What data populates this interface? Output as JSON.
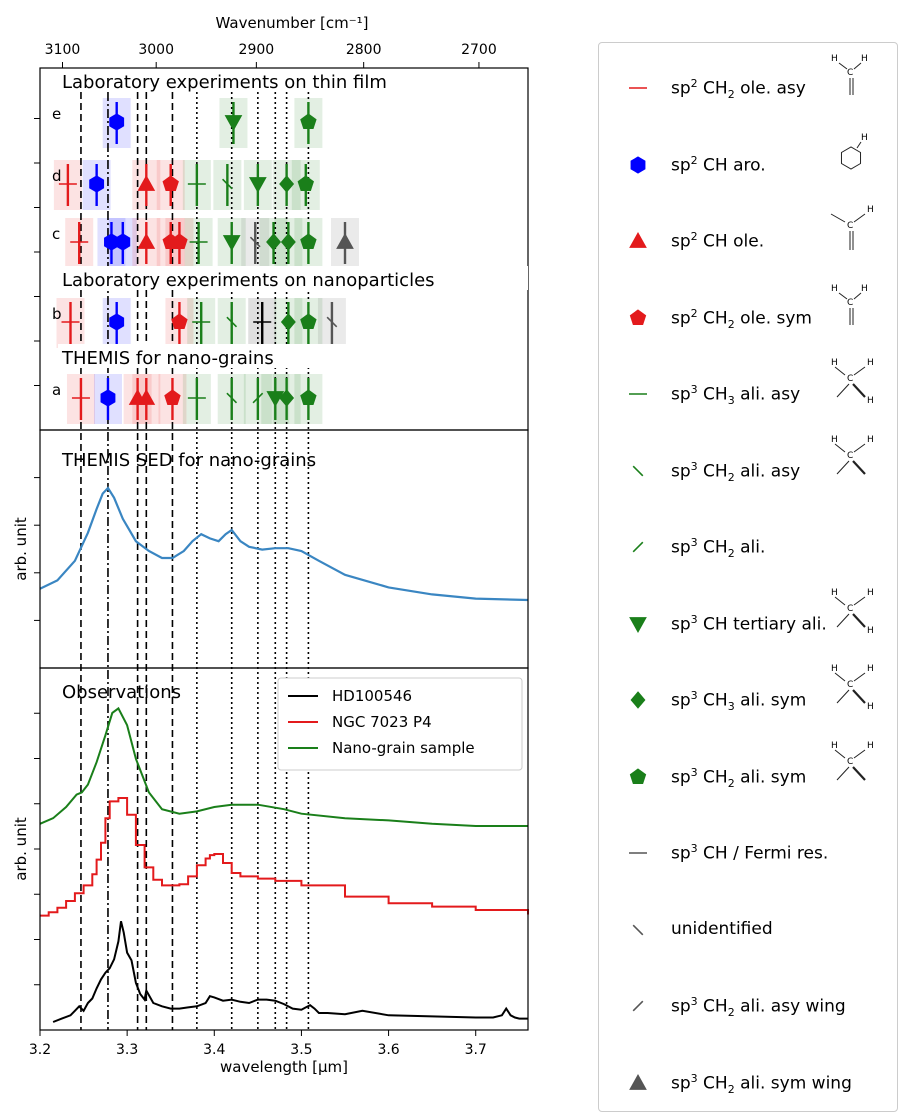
{
  "colors": {
    "sp2": "#e31a1c",
    "aro": "#0000ff",
    "sp3": "#1a7f1a",
    "gray": "#555555",
    "sed": "#3a86c2",
    "black": "#000000"
  },
  "chart_data": {
    "type": "line",
    "xlabel": "wavelength [μm]",
    "top_axis_label": "Wavenumber [cm⁻¹]",
    "xlim": [
      3.2,
      3.76
    ],
    "x_ticks": [
      "3.2",
      "3.3",
      "3.4",
      "3.5",
      "3.6",
      "3.7"
    ],
    "top_ticks": [
      "3100",
      "3000",
      "2900",
      "2800",
      "2700"
    ],
    "vlines": [
      {
        "x": 3.247,
        "style": "dashed"
      },
      {
        "x": 3.278,
        "style": "dashdot"
      },
      {
        "x": 3.312,
        "style": "dashed"
      },
      {
        "x": 3.322,
        "style": "dashed"
      },
      {
        "x": 3.352,
        "style": "dashed"
      },
      {
        "x": 3.38,
        "style": "dotted"
      },
      {
        "x": 3.42,
        "style": "dotted"
      },
      {
        "x": 3.45,
        "style": "dotted"
      },
      {
        "x": 3.47,
        "style": "dotted"
      },
      {
        "x": 3.483,
        "style": "dotted"
      },
      {
        "x": 3.508,
        "style": "dotted"
      }
    ],
    "panel_top": {
      "section_titles": [
        "Laboratory experiments on thin film",
        "Laboratory experiments on nanoparticles",
        "THEMIS for nano-grains"
      ],
      "row_labels": [
        "e",
        "d",
        "c",
        "b",
        "a"
      ],
      "rows": {
        "e": [
          {
            "x": 3.288,
            "marker": "hexagon",
            "color": "aro"
          },
          {
            "x": 3.422,
            "marker": "tri_down",
            "color": "sp3"
          },
          {
            "x": 3.508,
            "marker": "pentagon",
            "color": "sp3"
          }
        ],
        "d": [
          {
            "x": 3.232,
            "marker": "hline",
            "color": "sp2"
          },
          {
            "x": 3.265,
            "marker": "hexagon",
            "color": "aro"
          },
          {
            "x": 3.322,
            "marker": "tri_up",
            "color": "sp2"
          },
          {
            "x": 3.35,
            "marker": "pentagon",
            "color": "sp2"
          },
          {
            "x": 3.38,
            "marker": "hline",
            "color": "sp3"
          },
          {
            "x": 3.415,
            "marker": "backslash",
            "color": "sp3"
          },
          {
            "x": 3.45,
            "marker": "tri_down",
            "color": "sp3"
          },
          {
            "x": 3.483,
            "marker": "diamond",
            "color": "sp3"
          },
          {
            "x": 3.505,
            "marker": "pentagon",
            "color": "sp3"
          }
        ],
        "c": [
          {
            "x": 3.245,
            "marker": "hline",
            "color": "sp2"
          },
          {
            "x": 3.282,
            "marker": "hexagon",
            "color": "aro"
          },
          {
            "x": 3.295,
            "marker": "hexagon",
            "color": "aro"
          },
          {
            "x": 3.322,
            "marker": "tri_up",
            "color": "sp2"
          },
          {
            "x": 3.35,
            "marker": "pentagon",
            "color": "sp2"
          },
          {
            "x": 3.36,
            "marker": "pentagon",
            "color": "sp2"
          },
          {
            "x": 3.382,
            "marker": "hline",
            "color": "sp3"
          },
          {
            "x": 3.42,
            "marker": "tri_down",
            "color": "sp3"
          },
          {
            "x": 3.447,
            "marker": "backslash",
            "color": "gray"
          },
          {
            "x": 3.468,
            "marker": "diamond",
            "color": "sp3"
          },
          {
            "x": 3.485,
            "marker": "diamond",
            "color": "sp3"
          },
          {
            "x": 3.508,
            "marker": "pentagon",
            "color": "sp3"
          },
          {
            "x": 3.55,
            "marker": "tri_up",
            "color": "gray"
          }
        ],
        "b": [
          {
            "x": 3.235,
            "marker": "hline",
            "color": "sp2"
          },
          {
            "x": 3.288,
            "marker": "hexagon",
            "color": "aro"
          },
          {
            "x": 3.36,
            "marker": "pentagon",
            "color": "sp2"
          },
          {
            "x": 3.385,
            "marker": "hline",
            "color": "sp3"
          },
          {
            "x": 3.42,
            "marker": "backslash",
            "color": "sp3"
          },
          {
            "x": 3.455,
            "marker": "hline",
            "color": "black"
          },
          {
            "x": 3.485,
            "marker": "diamond",
            "color": "sp3"
          },
          {
            "x": 3.508,
            "marker": "pentagon",
            "color": "sp3"
          },
          {
            "x": 3.535,
            "marker": "backslash",
            "color": "gray"
          }
        ],
        "a": [
          {
            "x": 3.247,
            "marker": "hline",
            "color": "sp2"
          },
          {
            "x": 3.278,
            "marker": "hexagon",
            "color": "aro"
          },
          {
            "x": 3.312,
            "marker": "tri_up",
            "color": "sp2"
          },
          {
            "x": 3.322,
            "marker": "tri_up",
            "color": "sp2"
          },
          {
            "x": 3.352,
            "marker": "pentagon",
            "color": "sp2"
          },
          {
            "x": 3.38,
            "marker": "hline",
            "color": "sp3"
          },
          {
            "x": 3.42,
            "marker": "backslash",
            "color": "sp3"
          },
          {
            "x": 3.45,
            "marker": "slash",
            "color": "sp3"
          },
          {
            "x": 3.47,
            "marker": "tri_down",
            "color": "sp3"
          },
          {
            "x": 3.483,
            "marker": "diamond",
            "color": "sp3"
          },
          {
            "x": 3.508,
            "marker": "pentagon",
            "color": "sp3"
          }
        ]
      }
    },
    "panel_mid": {
      "title": "THEMIS SED for nano-grains",
      "ylabel": "arb. unit",
      "series": [
        {
          "name": "",
          "color": "sed",
          "x": [
            3.2,
            3.22,
            3.24,
            3.255,
            3.265,
            3.272,
            3.278,
            3.285,
            3.295,
            3.31,
            3.325,
            3.34,
            3.352,
            3.365,
            3.375,
            3.385,
            3.395,
            3.405,
            3.413,
            3.42,
            3.43,
            3.44,
            3.455,
            3.47,
            3.485,
            3.5,
            3.52,
            3.55,
            3.6,
            3.65,
            3.7,
            3.76
          ],
          "y": [
            0.28,
            0.34,
            0.48,
            0.68,
            0.85,
            0.96,
            1.0,
            0.93,
            0.78,
            0.62,
            0.55,
            0.5,
            0.5,
            0.55,
            0.62,
            0.67,
            0.64,
            0.62,
            0.67,
            0.7,
            0.62,
            0.58,
            0.56,
            0.57,
            0.57,
            0.55,
            0.48,
            0.38,
            0.29,
            0.24,
            0.21,
            0.2
          ]
        }
      ]
    },
    "panel_bot": {
      "title": "Observations",
      "ylabel": "arb. unit",
      "legend": [
        "HD100546",
        "NGC 7023 P4",
        "Nano-grain sample"
      ],
      "series": [
        {
          "name": "HD100546",
          "color": "black",
          "step": false,
          "x": [
            3.215,
            3.225,
            3.235,
            3.24,
            3.245,
            3.25,
            3.255,
            3.26,
            3.265,
            3.27,
            3.275,
            3.28,
            3.285,
            3.29,
            3.293,
            3.296,
            3.3,
            3.305,
            3.31,
            3.315,
            3.32,
            3.322,
            3.325,
            3.33,
            3.34,
            3.35,
            3.36,
            3.37,
            3.38,
            3.39,
            3.395,
            3.4,
            3.41,
            3.42,
            3.43,
            3.44,
            3.45,
            3.46,
            3.47,
            3.48,
            3.49,
            3.5,
            3.505,
            3.51,
            3.515,
            3.52,
            3.53,
            3.55,
            3.57,
            3.6,
            3.65,
            3.7,
            3.72,
            3.73,
            3.735,
            3.74,
            3.745,
            3.75,
            3.76
          ],
          "y": [
            0.0,
            0.03,
            0.06,
            0.1,
            0.14,
            0.1,
            0.17,
            0.21,
            0.3,
            0.38,
            0.44,
            0.48,
            0.56,
            0.72,
            0.9,
            0.8,
            0.62,
            0.55,
            0.35,
            0.25,
            0.2,
            0.28,
            0.24,
            0.17,
            0.14,
            0.12,
            0.12,
            0.13,
            0.14,
            0.17,
            0.23,
            0.22,
            0.19,
            0.2,
            0.18,
            0.17,
            0.2,
            0.2,
            0.19,
            0.16,
            0.12,
            0.11,
            0.13,
            0.15,
            0.12,
            0.08,
            0.08,
            0.07,
            0.1,
            0.06,
            0.05,
            0.04,
            0.04,
            0.06,
            0.12,
            0.06,
            0.04,
            0.03,
            0.03
          ]
        },
        {
          "name": "NGC 7023 P4",
          "color": "sp2",
          "step": true,
          "x": [
            3.2,
            3.21,
            3.22,
            3.23,
            3.24,
            3.25,
            3.26,
            3.265,
            3.27,
            3.275,
            3.28,
            3.29,
            3.3,
            3.31,
            3.32,
            3.33,
            3.34,
            3.36,
            3.37,
            3.38,
            3.39,
            3.395,
            3.4,
            3.41,
            3.42,
            3.43,
            3.45,
            3.47,
            3.5,
            3.55,
            3.6,
            3.65,
            3.7,
            3.76
          ],
          "y": [
            0.95,
            0.98,
            1.02,
            1.08,
            1.15,
            1.22,
            1.32,
            1.45,
            1.6,
            1.82,
            1.97,
            2.0,
            1.85,
            1.58,
            1.38,
            1.27,
            1.22,
            1.23,
            1.3,
            1.4,
            1.46,
            1.49,
            1.5,
            1.42,
            1.33,
            1.3,
            1.28,
            1.26,
            1.22,
            1.12,
            1.06,
            1.03,
            1.0,
            0.96
          ]
        },
        {
          "name": "Nano-grain sample",
          "color": "sp3",
          "step": false,
          "x": [
            3.2,
            3.215,
            3.23,
            3.242,
            3.248,
            3.255,
            3.265,
            3.275,
            3.283,
            3.29,
            3.3,
            3.31,
            3.325,
            3.34,
            3.36,
            3.38,
            3.4,
            3.42,
            3.45,
            3.48,
            3.5,
            3.55,
            3.6,
            3.65,
            3.7,
            3.76
          ],
          "y": [
            1.77,
            1.82,
            1.92,
            2.03,
            2.05,
            2.12,
            2.32,
            2.56,
            2.76,
            2.8,
            2.65,
            2.35,
            2.05,
            1.9,
            1.86,
            1.88,
            1.92,
            1.94,
            1.94,
            1.9,
            1.86,
            1.82,
            1.8,
            1.77,
            1.75,
            1.75
          ]
        }
      ]
    }
  },
  "legend": {
    "items": [
      {
        "sup": "2",
        "label_pre": "sp",
        "label_post": " CH",
        "sub": "2",
        "label_tail": " ole. asy",
        "marker": "hline",
        "color": "sp2",
        "molecule": "vinyl"
      },
      {
        "sup": "2",
        "label_pre": "sp",
        "label_post": " CH aro.",
        "sub": "",
        "label_tail": "",
        "marker": "hexagon",
        "color": "aro",
        "molecule": "benzene"
      },
      {
        "sup": "2",
        "label_pre": "sp",
        "label_post": " CH ole.",
        "sub": "",
        "label_tail": "",
        "marker": "tri_up",
        "color": "sp2",
        "molecule": "olefin"
      },
      {
        "sup": "2",
        "label_pre": "sp",
        "label_post": " CH",
        "sub": "2",
        "label_tail": " ole. sym",
        "marker": "pentagon",
        "color": "sp2",
        "molecule": "vinyl"
      },
      {
        "sup": "3",
        "label_pre": "sp",
        "label_post": " CH",
        "sub": "3",
        "label_tail": " ali. asy",
        "marker": "hline",
        "color": "sp3",
        "molecule": "methyl"
      },
      {
        "sup": "3",
        "label_pre": "sp",
        "label_post": " CH",
        "sub": "2",
        "label_tail": " ali. asy",
        "marker": "backslash",
        "color": "sp3",
        "molecule": "methylene"
      },
      {
        "sup": "3",
        "label_pre": "sp",
        "label_post": " CH",
        "sub": "2",
        "label_tail": " ali.",
        "marker": "slash",
        "color": "sp3",
        "molecule": ""
      },
      {
        "sup": "3",
        "label_pre": "sp",
        "label_post": " CH tertiary ali.",
        "sub": "",
        "label_tail": "",
        "marker": "tri_down",
        "color": "sp3",
        "molecule": "tertiary"
      },
      {
        "sup": "3",
        "label_pre": "sp",
        "label_post": " CH",
        "sub": "3",
        "label_tail": " ali. sym",
        "marker": "diamond",
        "color": "sp3",
        "molecule": "methyl"
      },
      {
        "sup": "3",
        "label_pre": "sp",
        "label_post": " CH",
        "sub": "2",
        "label_tail": " ali. sym",
        "marker": "pentagon",
        "color": "sp3",
        "molecule": "methylene"
      },
      {
        "sup": "3",
        "label_pre": "sp",
        "label_post": " CH / Fermi res.",
        "sub": "",
        "label_tail": "",
        "marker": "hline",
        "color": "gray",
        "molecule": ""
      },
      {
        "sup": "",
        "label_pre": "unidentified",
        "label_post": "",
        "sub": "",
        "label_tail": "",
        "marker": "backslash",
        "color": "gray",
        "molecule": ""
      },
      {
        "sup": "3",
        "label_pre": "sp",
        "label_post": " CH",
        "sub": "2",
        "label_tail": " ali. asy  wing",
        "marker": "slash",
        "color": "gray",
        "molecule": ""
      },
      {
        "sup": "3",
        "label_pre": "sp",
        "label_post": " CH",
        "sub": "2",
        "label_tail": " ali. sym  wing",
        "marker": "tri_up",
        "color": "gray",
        "molecule": ""
      }
    ],
    "mol_atoms": {
      "C": "C",
      "H": "H"
    }
  }
}
